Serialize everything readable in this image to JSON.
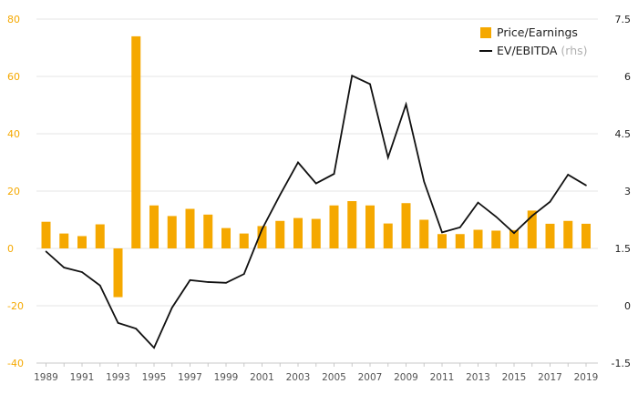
{
  "chart_data": {
    "type": "bar",
    "years": [
      1989,
      1990,
      1991,
      1992,
      1993,
      1994,
      1995,
      1996,
      1997,
      1998,
      1999,
      2000,
      2001,
      2002,
      2003,
      2004,
      2005,
      2006,
      2007,
      2008,
      2009,
      2010,
      2011,
      2012,
      2013,
      2014,
      2015,
      2016,
      2017,
      2018,
      2019
    ],
    "x_tick_labels": [
      "1989",
      "1991",
      "1993",
      "1995",
      "1997",
      "1999",
      "2001",
      "2003",
      "2005",
      "2007",
      "2009",
      "2011",
      "2013",
      "2015",
      "2017",
      "2019"
    ],
    "series": [
      {
        "name": "Price/Earnings",
        "type": "bar",
        "axis": "left",
        "color": "#f5a800",
        "values": [
          9.3,
          5.2,
          4.3,
          8.4,
          -17.0,
          74.0,
          15.0,
          11.3,
          13.8,
          11.8,
          7.1,
          5.2,
          7.8,
          9.6,
          10.6,
          10.3,
          15.0,
          16.5,
          15.0,
          8.7,
          15.8,
          10.0,
          5.0,
          5.0,
          6.5,
          6.2,
          6.4,
          13.2,
          8.6,
          9.6,
          8.6
        ]
      },
      {
        "name": "EV/EBITDA",
        "name_suffix": "(rhs)",
        "type": "line",
        "axis": "right",
        "color": "#111111",
        "values": [
          1.42,
          1.0,
          0.88,
          0.53,
          -0.45,
          -0.6,
          -1.1,
          -0.05,
          0.67,
          0.62,
          0.6,
          0.83,
          2.0,
          2.9,
          3.75,
          3.2,
          3.45,
          6.02,
          5.8,
          3.88,
          5.27,
          3.25,
          1.92,
          2.05,
          2.7,
          2.33,
          1.9,
          2.35,
          2.72,
          3.43,
          3.15
        ]
      }
    ],
    "left_axis": {
      "min": -40,
      "max": 80,
      "ticks": [
        80,
        60,
        40,
        20,
        0,
        -20,
        -40
      ],
      "color": "#f5a800"
    },
    "right_axis": {
      "min": -1.5,
      "max": 7.5,
      "ticks": [
        "7.5",
        "6",
        "4.5",
        "3",
        "1.5",
        "0",
        "-1.5"
      ]
    },
    "grid": true,
    "legend_position": "top-right"
  }
}
